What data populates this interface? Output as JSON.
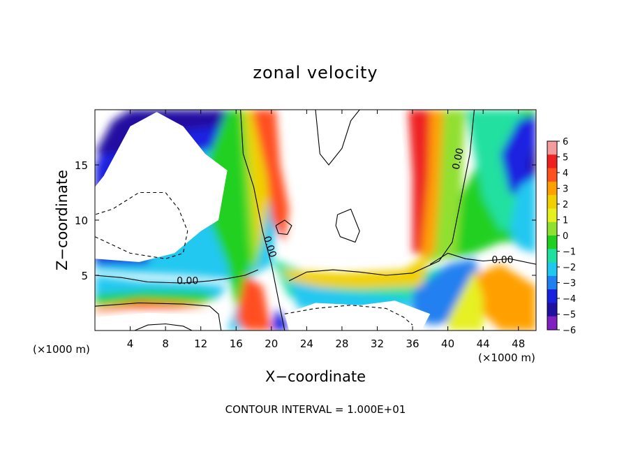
{
  "chart_data": {
    "type": "heatmap",
    "title": "zonal velocity",
    "xlabel": "X−coordinate",
    "ylabel": "Z−coordinate",
    "x_unit_left": "(×1000 m)",
    "x_unit_right": "(×1000 m)",
    "xlim": [
      0,
      50
    ],
    "ylim": [
      0,
      20
    ],
    "x_ticks": [
      4,
      8,
      12,
      16,
      20,
      24,
      28,
      32,
      36,
      40,
      44,
      48
    ],
    "y_ticks": [
      5,
      10,
      15
    ],
    "colorbar": {
      "range": [
        -6,
        6
      ],
      "ticks": [
        "6",
        "5",
        "4",
        "3",
        "2",
        "1",
        "0",
        "−1",
        "−2",
        "−3",
        "−4",
        "−5",
        "−6"
      ],
      "colors": [
        "#f49b9b",
        "#ee2020",
        "#ff5020",
        "#ffa000",
        "#f0d000",
        "#e6f020",
        "#90e030",
        "#20d020",
        "#20e0a0",
        "#20c8f0",
        "#2080f0",
        "#1a20e0",
        "#2010a0",
        "#8020c0"
      ]
    },
    "contour_labels": [
      "0.00",
      "0.00",
      "0.00",
      "0.00"
    ],
    "footnote": "CONTOUR INTERVAL = 1.000E+01",
    "grid": false,
    "legend": "colorbar-right"
  }
}
